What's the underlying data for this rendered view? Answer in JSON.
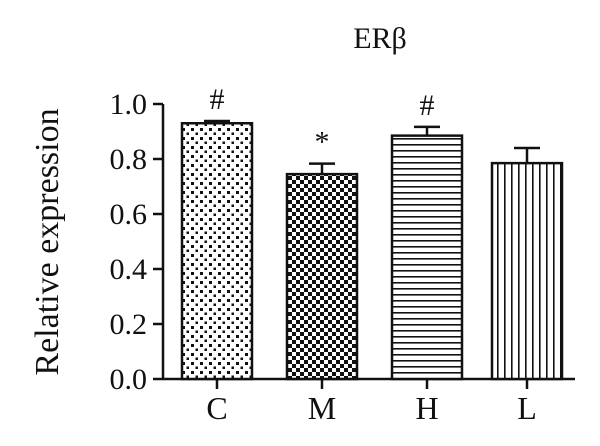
{
  "chart_data": {
    "type": "bar",
    "title": "ERβ",
    "xlabel": "",
    "ylabel": "Relative expression",
    "categories": [
      "C",
      "M",
      "H",
      "L"
    ],
    "values": [
      0.93,
      0.745,
      0.885,
      0.785
    ],
    "errors": [
      0.008,
      0.038,
      0.032,
      0.055
    ],
    "significance": [
      "#",
      "*",
      "#",
      ""
    ],
    "ylim": [
      0,
      1.0
    ],
    "yticks": [
      "0.0",
      "0.2",
      "0.4",
      "0.6",
      "0.8",
      "1.0"
    ],
    "patterns": [
      "sparse-dots",
      "checkerboard",
      "horizontal-lines",
      "vertical-lines"
    ],
    "grid": false,
    "legend": "none"
  }
}
